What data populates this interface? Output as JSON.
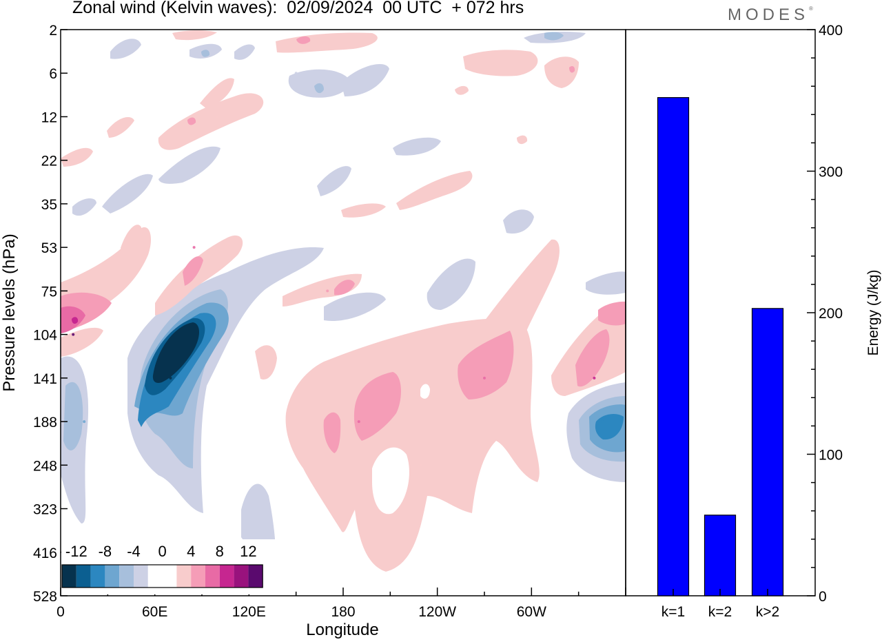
{
  "header": {
    "title": "Zonal wind (Kelvin waves):  02/09/2024  00 UTC  + 072 hrs",
    "brand": "MODES"
  },
  "colors": {
    "bar_fill": "#0000ff",
    "negative_scale": [
      "#06324e",
      "#0b5f91",
      "#2c87c0",
      "#6ea6d0",
      "#a7bfdc",
      "#cdd1e5"
    ],
    "positive_scale": [
      "#f8cccc",
      "#f59db7",
      "#e86aa5",
      "#c62690",
      "#99127d",
      "#5a0a6e"
    ]
  },
  "chart_data": [
    {
      "type": "heatmap",
      "title": "Zonal wind (Kelvin waves):  02/09/2024  00 UTC  + 072 hrs",
      "xlabel": "Longitude",
      "ylabel": "Pressure levels (hPa)",
      "x_ticks": [
        "0",
        "60E",
        "120E",
        "180",
        "120W",
        "60W"
      ],
      "x_tick_degrees": [
        0,
        60,
        120,
        180,
        240,
        300
      ],
      "xlim": [
        0,
        360
      ],
      "y_ticks": [
        "2",
        "6",
        "12",
        "22",
        "35",
        "53",
        "75",
        "104",
        "141",
        "188",
        "248",
        "323",
        "416",
        "528"
      ],
      "legend": {
        "labels": [
          "-12",
          "-8",
          "-4",
          "0",
          "4",
          "8",
          "12"
        ],
        "placement": "bottom-left"
      },
      "features": [
        {
          "lon": 70,
          "level": "141",
          "value": -14
        },
        {
          "lon": 15,
          "level": "188",
          "value": -6
        },
        {
          "lon": 345,
          "level": "188",
          "value": -8
        },
        {
          "lon": 8,
          "level": "104",
          "value": 12
        },
        {
          "lon": 340,
          "level": "141",
          "value": 8
        },
        {
          "lon": 190,
          "level": "188",
          "value": 6
        },
        {
          "lon": 270,
          "level": "141",
          "value": 6
        },
        {
          "lon": 85,
          "level": "53",
          "value": 6
        },
        {
          "lon": 170,
          "level": "75",
          "value": 4
        },
        {
          "lon": 230,
          "level": "248",
          "value": 2
        },
        {
          "lon": 100,
          "level": "12",
          "value": 2
        },
        {
          "lon": 150,
          "level": "6",
          "value": -2
        }
      ]
    },
    {
      "type": "bar",
      "categories": [
        "k=1",
        "k=2",
        "k>2"
      ],
      "values": [
        352,
        57,
        203
      ],
      "ylabel": "Energy (J/kg)",
      "ylim": [
        0,
        400
      ],
      "y_ticks": [
        "0",
        "100",
        "200",
        "300",
        "400"
      ]
    }
  ]
}
